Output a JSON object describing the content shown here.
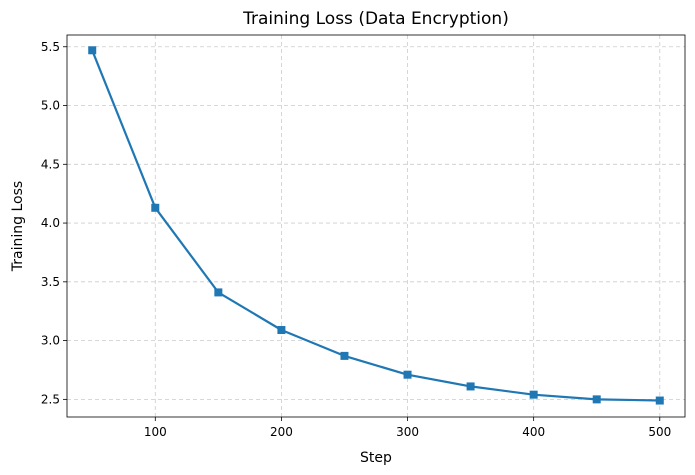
{
  "chart_data": {
    "type": "line",
    "title": "Training Loss (Data Encryption)",
    "xlabel": "Step",
    "ylabel": "Training Loss",
    "xlim": [
      30,
      520
    ],
    "ylim": [
      2.35,
      5.6
    ],
    "xticks": [
      100,
      200,
      300,
      400,
      500
    ],
    "yticks": [
      2.5,
      3.0,
      3.5,
      4.0,
      4.5,
      5.0,
      5.5
    ],
    "grid": true,
    "series": [
      {
        "color": "#1f77b4",
        "marker": "square",
        "x": [
          50,
          100,
          150,
          200,
          250,
          300,
          350,
          400,
          450,
          500
        ],
        "y": [
          5.47,
          4.13,
          3.41,
          3.09,
          2.87,
          2.71,
          2.61,
          2.54,
          2.5,
          2.49
        ]
      }
    ]
  }
}
